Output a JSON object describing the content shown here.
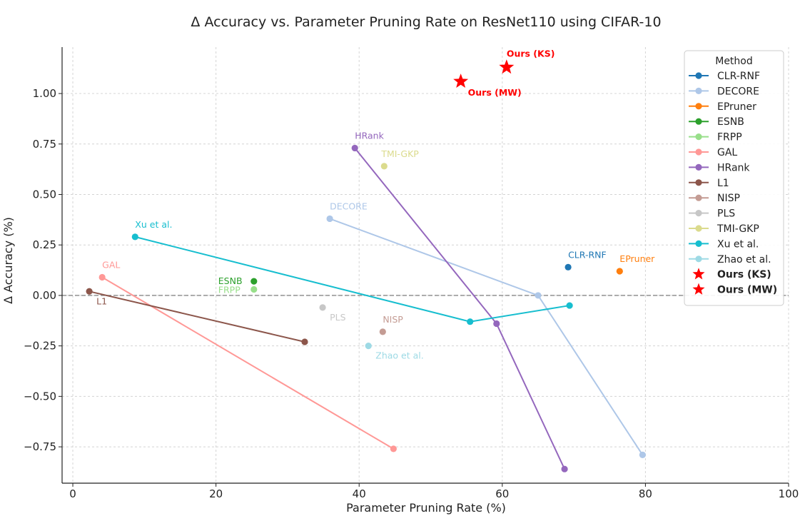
{
  "chart_data": {
    "type": "scatter",
    "title": "Δ Accuracy vs. Parameter Pruning Rate on ResNet110 using CIFAR-10",
    "xlabel": "Parameter Pruning Rate (%)",
    "ylabel": "Δ Accuracy (%)",
    "xlim": [
      -1.5,
      100
    ],
    "ylim": [
      -0.93,
      1.23
    ],
    "xticks": [
      0,
      20,
      40,
      60,
      80,
      100
    ],
    "xtick_labels": [
      "0",
      "20",
      "40",
      "60",
      "80",
      "100"
    ],
    "yticks": [
      -0.75,
      -0.5,
      -0.25,
      0.0,
      0.25,
      0.5,
      0.75,
      1.0
    ],
    "ytick_labels": [
      "−0.75",
      "−0.50",
      "−0.25",
      "0.00",
      "0.25",
      "0.50",
      "0.75",
      "1.00"
    ],
    "grid": true,
    "reference_line_y": 0,
    "legend": {
      "title": "Method",
      "position": "top-right"
    },
    "series": [
      {
        "name": "CLR-RNF",
        "color": "#1f77b4",
        "marker": "circle",
        "label_text": "CLR-RNF",
        "points": [
          {
            "x": 69.2,
            "y": 0.14
          }
        ]
      },
      {
        "name": "DECORE",
        "color": "#aec7e8",
        "marker": "circle",
        "label_text": "DECORE",
        "points": [
          {
            "x": 35.9,
            "y": 0.38
          },
          {
            "x": 65.0,
            "y": 0.0
          },
          {
            "x": 79.6,
            "y": -0.79
          }
        ]
      },
      {
        "name": "EPruner",
        "color": "#ff7f0e",
        "marker": "circle",
        "label_text": "EPruner",
        "points": [
          {
            "x": 76.4,
            "y": 0.12
          }
        ]
      },
      {
        "name": "ESNB",
        "color": "#2ca02c",
        "marker": "circle",
        "label_text": "ESNB",
        "points": [
          {
            "x": 25.3,
            "y": 0.07
          }
        ]
      },
      {
        "name": "FRPP",
        "color": "#98df8a",
        "marker": "circle",
        "label_text": "FRPP",
        "points": [
          {
            "x": 25.3,
            "y": 0.03
          }
        ]
      },
      {
        "name": "GAL",
        "color": "#ff9896",
        "marker": "circle",
        "label_text": "GAL",
        "points": [
          {
            "x": 4.1,
            "y": 0.09
          },
          {
            "x": 44.8,
            "y": -0.76
          }
        ]
      },
      {
        "name": "HRank",
        "color": "#9467bd",
        "marker": "circle",
        "label_text": "HRank",
        "points": [
          {
            "x": 39.4,
            "y": 0.73
          },
          {
            "x": 59.2,
            "y": -0.14
          },
          {
            "x": 68.7,
            "y": -0.86
          }
        ]
      },
      {
        "name": "L1",
        "color": "#8c564b",
        "marker": "circle",
        "label_text": "L1",
        "points": [
          {
            "x": 2.3,
            "y": 0.02
          },
          {
            "x": 32.4,
            "y": -0.23
          }
        ]
      },
      {
        "name": "NISP",
        "color": "#c49c94",
        "marker": "circle",
        "label_text": "NISP",
        "points": [
          {
            "x": 43.3,
            "y": -0.18
          }
        ]
      },
      {
        "name": "PLS",
        "color": "#c7c7c7",
        "marker": "circle",
        "label_text": "PLS",
        "points": [
          {
            "x": 34.9,
            "y": -0.06
          }
        ]
      },
      {
        "name": "TMI-GKP",
        "color": "#dbdb8d",
        "marker": "circle",
        "label_text": "TMI-GKP",
        "points": [
          {
            "x": 43.5,
            "y": 0.64
          }
        ]
      },
      {
        "name": "Xu et al.",
        "color": "#17becf",
        "marker": "circle",
        "label_text": "Xu et al.",
        "points": [
          {
            "x": 8.7,
            "y": 0.29
          },
          {
            "x": 55.5,
            "y": -0.13
          },
          {
            "x": 69.4,
            "y": -0.05
          }
        ]
      },
      {
        "name": "Zhao et al.",
        "color": "#9edae5",
        "marker": "circle",
        "label_text": "Zhao et al.",
        "points": [
          {
            "x": 41.3,
            "y": -0.25
          }
        ]
      },
      {
        "name": "Ours (KS)",
        "color": "#ff0000",
        "marker": "star",
        "bold": true,
        "label_text": "Ours (KS)",
        "points": [
          {
            "x": 60.6,
            "y": 1.13
          }
        ]
      },
      {
        "name": "Ours (MW)",
        "color": "#ff0000",
        "marker": "star",
        "bold": true,
        "label_text": "Ours (MW)",
        "points": [
          {
            "x": 54.2,
            "y": 1.06
          }
        ]
      }
    ]
  }
}
